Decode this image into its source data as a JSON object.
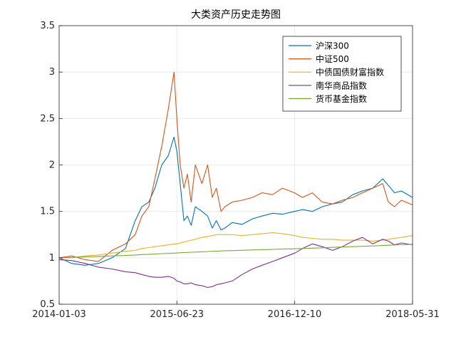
{
  "chart_data": {
    "type": "line",
    "title": "大类资产历史走势图",
    "xlabel": "",
    "ylabel": "",
    "x_tick_labels": [
      "2014-01-03",
      "2015-06-23",
      "2016-12-10",
      "2018-05-31"
    ],
    "x": [
      "2014-01-03",
      "2014-03-01",
      "2014-05-01",
      "2014-07-01",
      "2014-09-01",
      "2014-11-01",
      "2014-12-15",
      "2015-01-15",
      "2015-02-15",
      "2015-03-15",
      "2015-04-15",
      "2015-05-15",
      "2015-06-10",
      "2015-06-23",
      "2015-07-08",
      "2015-07-25",
      "2015-08-10",
      "2015-08-27",
      "2015-09-15",
      "2015-10-15",
      "2015-11-10",
      "2015-12-01",
      "2015-12-20",
      "2016-01-10",
      "2016-01-28",
      "2016-03-01",
      "2016-04-15",
      "2016-06-01",
      "2016-07-15",
      "2016-09-01",
      "2016-10-15",
      "2016-12-10",
      "2017-01-15",
      "2017-03-01",
      "2017-04-15",
      "2017-06-01",
      "2017-07-15",
      "2017-09-01",
      "2017-10-15",
      "2017-12-01",
      "2018-01-15",
      "2018-02-10",
      "2018-03-10",
      "2018-04-10",
      "2018-05-31"
    ],
    "ylim": [
      0.5,
      3.5
    ],
    "yticks": [
      0.5,
      1,
      1.5,
      2,
      2.5,
      3,
      3.5
    ],
    "grid": true,
    "legend_position": "top-right",
    "series": [
      {
        "name": "沪深300",
        "color": "#0072BD",
        "values": [
          1.0,
          0.94,
          0.92,
          0.94,
          1.0,
          1.1,
          1.4,
          1.55,
          1.6,
          1.75,
          2.0,
          2.1,
          2.3,
          2.15,
          1.8,
          1.4,
          1.45,
          1.35,
          1.55,
          1.5,
          1.45,
          1.32,
          1.4,
          1.3,
          1.32,
          1.38,
          1.36,
          1.42,
          1.45,
          1.48,
          1.47,
          1.5,
          1.52,
          1.5,
          1.55,
          1.58,
          1.6,
          1.68,
          1.72,
          1.75,
          1.85,
          1.78,
          1.7,
          1.72,
          1.65
        ]
      },
      {
        "name": "中证500",
        "color": "#D95319",
        "values": [
          1.0,
          1.02,
          0.98,
          0.96,
          1.08,
          1.15,
          1.25,
          1.45,
          1.55,
          1.85,
          2.2,
          2.6,
          3.0,
          2.5,
          2.0,
          1.75,
          1.9,
          1.6,
          2.0,
          1.8,
          2.0,
          1.65,
          1.75,
          1.5,
          1.55,
          1.6,
          1.62,
          1.65,
          1.7,
          1.68,
          1.75,
          1.7,
          1.65,
          1.7,
          1.6,
          1.58,
          1.62,
          1.65,
          1.7,
          1.75,
          1.8,
          1.6,
          1.55,
          1.62,
          1.57
        ]
      },
      {
        "name": "中债国债财富指数",
        "color": "#EDB120",
        "values": [
          1.0,
          1.0,
          1.02,
          1.03,
          1.05,
          1.07,
          1.08,
          1.1,
          1.11,
          1.12,
          1.13,
          1.14,
          1.15,
          1.15,
          1.16,
          1.17,
          1.18,
          1.19,
          1.2,
          1.22,
          1.23,
          1.24,
          1.25,
          1.25,
          1.25,
          1.25,
          1.24,
          1.25,
          1.26,
          1.27,
          1.26,
          1.24,
          1.22,
          1.21,
          1.2,
          1.2,
          1.19,
          1.19,
          1.19,
          1.18,
          1.19,
          1.2,
          1.21,
          1.22,
          1.24
        ]
      },
      {
        "name": "南华商品指数",
        "color": "#7E2F8E",
        "values": [
          0.98,
          0.97,
          0.94,
          0.9,
          0.88,
          0.85,
          0.84,
          0.82,
          0.8,
          0.79,
          0.79,
          0.8,
          0.78,
          0.75,
          0.74,
          0.72,
          0.72,
          0.73,
          0.71,
          0.7,
          0.68,
          0.69,
          0.71,
          0.72,
          0.73,
          0.75,
          0.82,
          0.88,
          0.92,
          0.96,
          1.0,
          1.05,
          1.1,
          1.15,
          1.12,
          1.08,
          1.12,
          1.18,
          1.22,
          1.15,
          1.2,
          1.18,
          1.14,
          1.16,
          1.14
        ]
      },
      {
        "name": "货币基金指数",
        "color": "#77AC30",
        "values": [
          1.0,
          1.005,
          1.01,
          1.015,
          1.02,
          1.025,
          1.03,
          1.035,
          1.038,
          1.042,
          1.045,
          1.048,
          1.05,
          1.052,
          1.054,
          1.056,
          1.058,
          1.06,
          1.062,
          1.065,
          1.068,
          1.07,
          1.072,
          1.074,
          1.076,
          1.078,
          1.081,
          1.085,
          1.088,
          1.091,
          1.094,
          1.097,
          1.1,
          1.104,
          1.108,
          1.112,
          1.116,
          1.12,
          1.124,
          1.128,
          1.132,
          1.135,
          1.138,
          1.141,
          1.145
        ]
      }
    ]
  }
}
